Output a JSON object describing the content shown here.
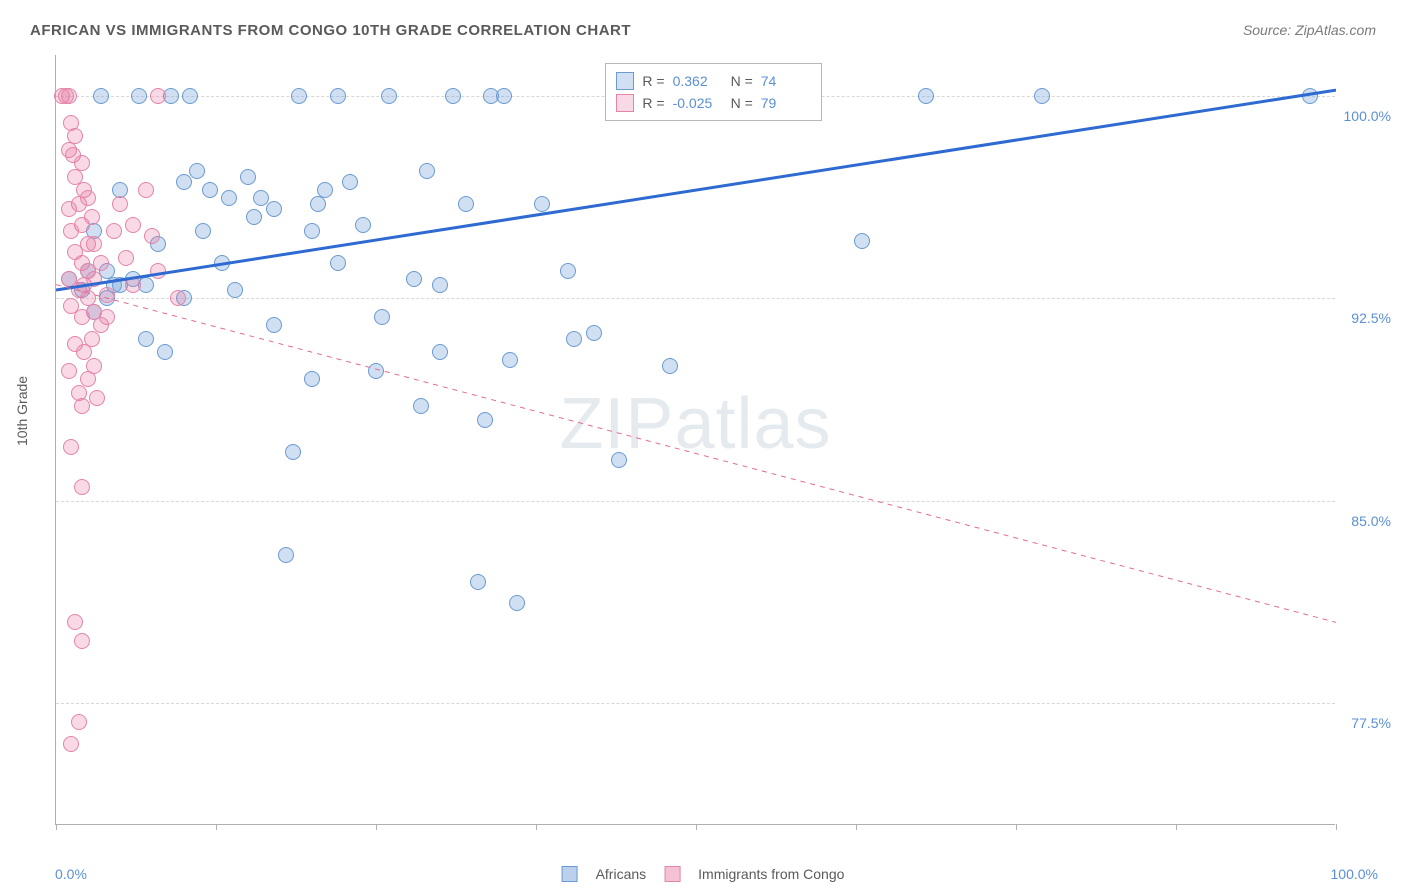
{
  "title": "AFRICAN VS IMMIGRANTS FROM CONGO 10TH GRADE CORRELATION CHART",
  "source": "Source: ZipAtlas.com",
  "watermark": "ZIPatlas",
  "chart": {
    "type": "scatter",
    "ylabel": "10th Grade",
    "xlim": [
      0,
      100
    ],
    "ylim": [
      73,
      101.5
    ],
    "ytick_values": [
      77.5,
      85.0,
      92.5,
      100.0
    ],
    "ytick_labels": [
      "77.5%",
      "85.0%",
      "92.5%",
      "100.0%"
    ],
    "xtick_values": [
      0,
      12.5,
      25,
      37.5,
      50,
      62.5,
      75,
      87.5,
      100
    ],
    "xtick_labels_shown": {
      "0": "0.0%",
      "100": "100.0%"
    },
    "grid_color": "#d8d8d8",
    "background_color": "#ffffff",
    "marker_radius": 8,
    "series": [
      {
        "name": "Africans",
        "fill": "rgba(119,162,216,0.35)",
        "stroke": "#6b9bd1",
        "R": "0.362",
        "N": "74",
        "trend": {
          "x1": 0,
          "y1": 92.8,
          "x2": 100,
          "y2": 100.2,
          "color": "#2e6ad1",
          "width": 3,
          "dash": "none"
        },
        "points": [
          [
            1,
            93.2
          ],
          [
            2,
            92.8
          ],
          [
            2.5,
            93.5
          ],
          [
            3,
            95
          ],
          [
            3,
            92
          ],
          [
            3.5,
            100
          ],
          [
            4,
            93.5
          ],
          [
            4,
            92.5
          ],
          [
            4.5,
            93
          ],
          [
            5,
            96.5
          ],
          [
            5,
            93
          ],
          [
            6,
            93.2
          ],
          [
            6.5,
            100
          ],
          [
            7,
            91
          ],
          [
            7,
            93
          ],
          [
            8,
            94.5
          ],
          [
            8.5,
            90.5
          ],
          [
            9,
            100
          ],
          [
            10,
            96.8
          ],
          [
            10,
            92.5
          ],
          [
            10.5,
            100
          ],
          [
            11,
            97.2
          ],
          [
            11.5,
            95
          ],
          [
            12,
            96.5
          ],
          [
            13,
            93.8
          ],
          [
            13.5,
            96.2
          ],
          [
            14,
            92.8
          ],
          [
            15,
            97
          ],
          [
            15.5,
            95.5
          ],
          [
            16,
            96.2
          ],
          [
            17,
            91.5
          ],
          [
            17,
            95.8
          ],
          [
            18,
            83
          ],
          [
            18.5,
            86.8
          ],
          [
            19,
            100
          ],
          [
            20,
            89.5
          ],
          [
            20.5,
            96
          ],
          [
            20,
            95
          ],
          [
            21,
            96.5
          ],
          [
            22,
            93.8
          ],
          [
            22,
            100
          ],
          [
            23,
            96.8
          ],
          [
            24,
            95.2
          ],
          [
            25,
            89.8
          ],
          [
            25.5,
            91.8
          ],
          [
            26,
            100
          ],
          [
            28,
            93.2
          ],
          [
            28.5,
            88.5
          ],
          [
            29,
            97.2
          ],
          [
            30,
            93
          ],
          [
            30,
            90.5
          ],
          [
            31,
            100
          ],
          [
            32,
            96
          ],
          [
            33,
            82
          ],
          [
            33.5,
            88
          ],
          [
            34,
            100
          ],
          [
            35,
            100
          ],
          [
            35.5,
            90.2
          ],
          [
            36,
            81.2
          ],
          [
            38,
            96
          ],
          [
            40,
            93.5
          ],
          [
            40.5,
            91
          ],
          [
            42,
            91.2
          ],
          [
            44,
            86.5
          ],
          [
            48,
            90
          ],
          [
            63,
            94.6
          ],
          [
            68,
            100
          ],
          [
            77,
            100
          ],
          [
            98,
            100
          ]
        ]
      },
      {
        "name": "Immigrants from Congo",
        "fill": "rgba(230,120,160,0.28)",
        "stroke": "#e584a8",
        "R": "-0.025",
        "N": "79",
        "trend": {
          "x1": 0,
          "y1": 93.0,
          "x2": 100,
          "y2": 80.5,
          "color": "#e36b96",
          "width": 1,
          "dash": "5,5"
        },
        "points": [
          [
            0.5,
            100
          ],
          [
            0.8,
            100
          ],
          [
            1,
            100
          ],
          [
            1.2,
            99
          ],
          [
            1.5,
            98.5
          ],
          [
            1,
            98
          ],
          [
            1.3,
            97.8
          ],
          [
            2,
            97.5
          ],
          [
            1.5,
            97
          ],
          [
            2.2,
            96.5
          ],
          [
            1.8,
            96
          ],
          [
            2.5,
            96.2
          ],
          [
            1,
            95.8
          ],
          [
            2,
            95.2
          ],
          [
            2.8,
            95.5
          ],
          [
            1.2,
            95
          ],
          [
            2.5,
            94.5
          ],
          [
            1.5,
            94.2
          ],
          [
            3,
            94.5
          ],
          [
            2,
            93.8
          ],
          [
            2.5,
            93.5
          ],
          [
            3.5,
            93.8
          ],
          [
            1,
            93.2
          ],
          [
            2.2,
            93
          ],
          [
            3,
            93.2
          ],
          [
            1.8,
            92.8
          ],
          [
            2.5,
            92.5
          ],
          [
            4,
            92.6
          ],
          [
            1.2,
            92.2
          ],
          [
            3,
            92
          ],
          [
            2,
            91.8
          ],
          [
            3.5,
            91.5
          ],
          [
            2.8,
            91
          ],
          [
            1.5,
            90.8
          ],
          [
            2.2,
            90.5
          ],
          [
            3,
            90
          ],
          [
            1,
            89.8
          ],
          [
            2.5,
            89.5
          ],
          [
            1.8,
            89
          ],
          [
            3.2,
            88.8
          ],
          [
            2,
            88.5
          ],
          [
            1.2,
            87
          ],
          [
            2,
            85.5
          ],
          [
            1.5,
            80.5
          ],
          [
            2,
            79.8
          ],
          [
            1.8,
            76.8
          ],
          [
            1.2,
            76
          ],
          [
            4.5,
            95
          ],
          [
            5,
            96
          ],
          [
            5.5,
            94
          ],
          [
            6,
            95.2
          ],
          [
            6,
            93
          ],
          [
            7,
            96.5
          ],
          [
            7.5,
            94.8
          ],
          [
            8,
            93.5
          ],
          [
            4,
            91.8
          ],
          [
            8,
            100
          ],
          [
            9.5,
            92.5
          ]
        ]
      }
    ],
    "legend_bottom": [
      {
        "label": "Africans",
        "fill": "rgba(119,162,216,0.5)",
        "stroke": "#6b9bd1"
      },
      {
        "label": "Immigrants from Congo",
        "fill": "rgba(230,120,160,0.45)",
        "stroke": "#e584a8"
      }
    ]
  }
}
